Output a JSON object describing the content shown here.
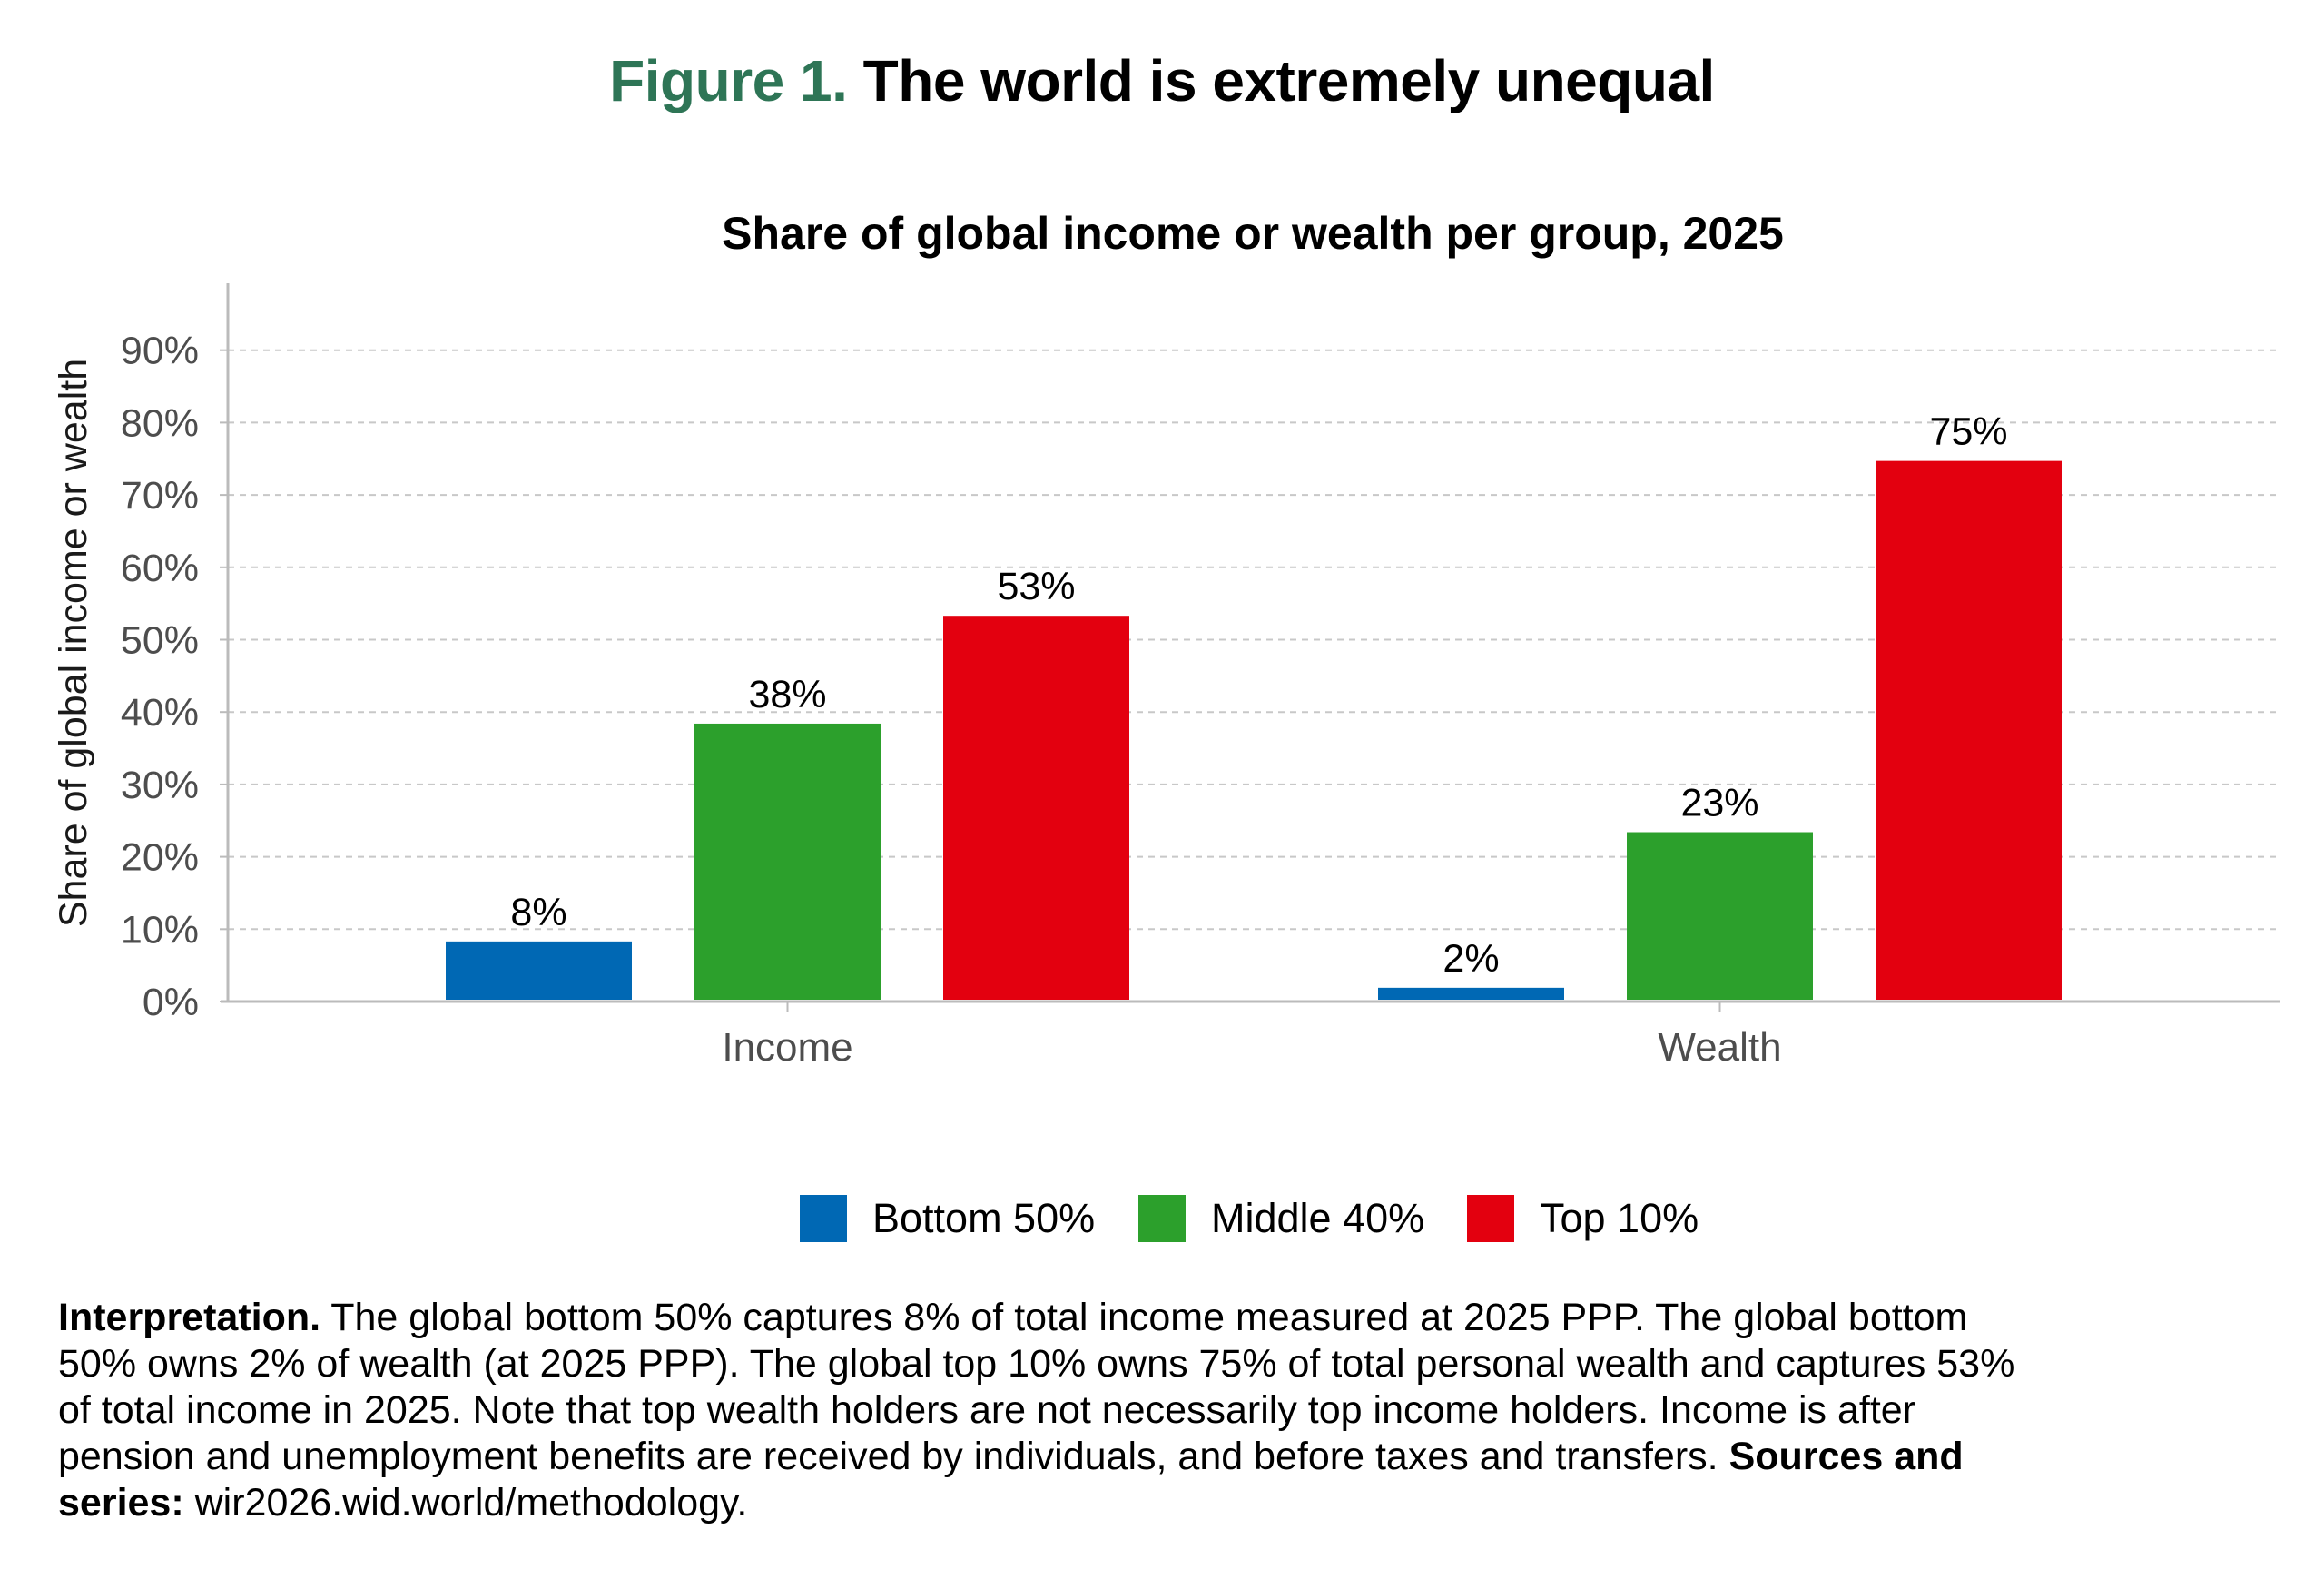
{
  "figure": {
    "label": "Figure 1.",
    "title": "The world is extremely unequal"
  },
  "chart_data": {
    "type": "bar",
    "title": "Share of global income or wealth per group, 2025",
    "xlabel": "",
    "ylabel": "Share of global income or wealth",
    "categories": [
      "Income",
      "Wealth"
    ],
    "ylim": [
      0,
      98
    ],
    "yticks": [
      0,
      10,
      20,
      30,
      40,
      50,
      60,
      70,
      80,
      90
    ],
    "ytick_labels": [
      "0%",
      "10%",
      "20%",
      "30%",
      "40%",
      "50%",
      "60%",
      "70%",
      "80%",
      "90%"
    ],
    "grid": true,
    "legend_position": "bottom",
    "series": [
      {
        "name": "Bottom 50%",
        "color": "#0068b4",
        "values": [
          8.3,
          1.9
        ],
        "labels": [
          "8%",
          "2%"
        ]
      },
      {
        "name": "Middle 40%",
        "color": "#2ca02c",
        "values": [
          38.4,
          23.4
        ],
        "labels": [
          "38%",
          "23%"
        ]
      },
      {
        "name": "Top 10%",
        "color": "#e3000f",
        "values": [
          53.3,
          74.7
        ],
        "labels": [
          "53%",
          "75%"
        ]
      }
    ]
  },
  "interpretation": {
    "lines": [
      [
        {
          "text": "Interpretation.",
          "bold": true
        },
        {
          "text": " The global bottom 50% captures 8% of total income measured at 2025 PPP. The global bottom",
          "bold": false
        }
      ],
      [
        {
          "text": "50% owns 2% of wealth (at 2025 PPP). The global top 10% owns 75% of total personal wealth and captures 53%",
          "bold": false
        }
      ],
      [
        {
          "text": "of total income in 2025. Note that top wealth holders are not necessarily top income holders. Income is after",
          "bold": false
        }
      ],
      [
        {
          "text": "pension and unemployment benefits are received by individuals, and before taxes and transfers. ",
          "bold": false
        },
        {
          "text": "Sources and",
          "bold": true
        }
      ],
      [
        {
          "text": "series:",
          "bold": true
        },
        {
          "text": " wir2026.wid.world/methodology.",
          "bold": false
        }
      ]
    ]
  }
}
